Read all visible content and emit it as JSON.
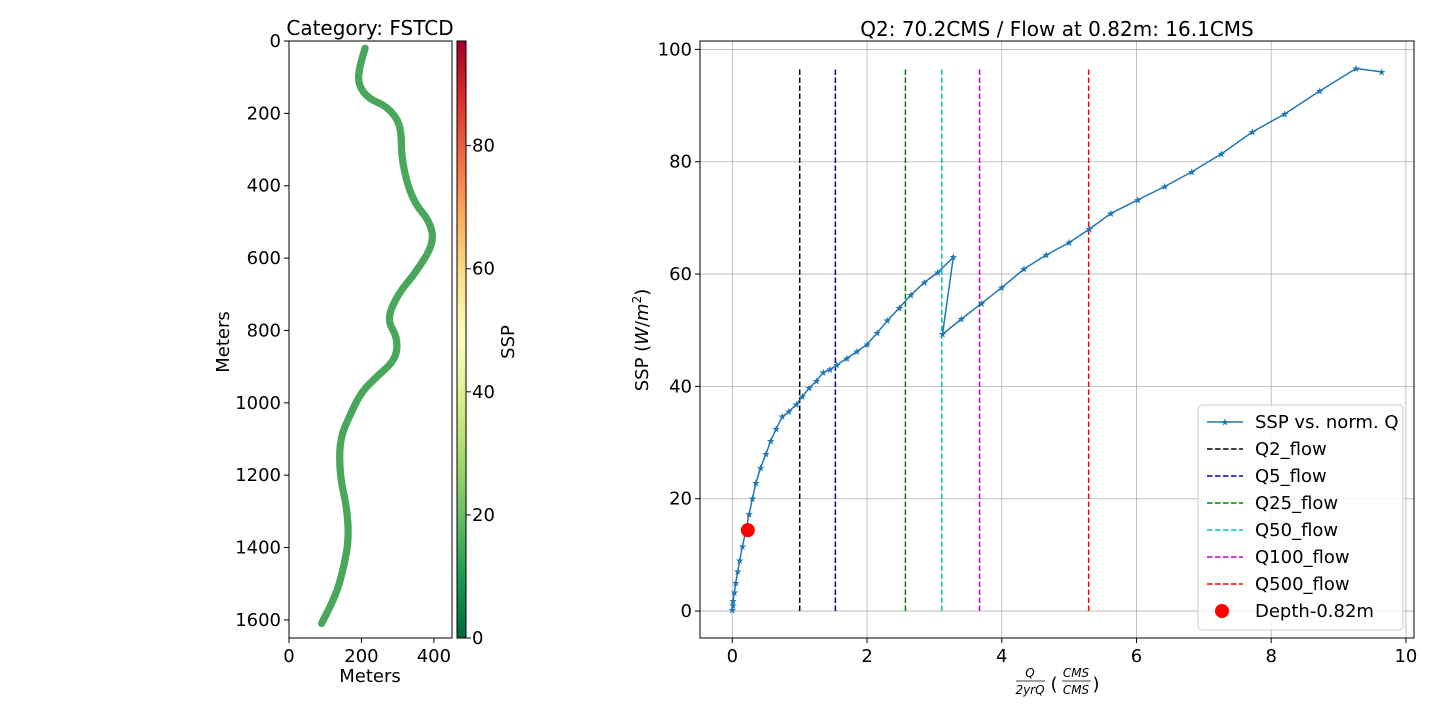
{
  "chart_data": [
    {
      "type": "heatmap",
      "title": "Category: FSTCD",
      "xlabel": "Meters",
      "ylabel": "Meters",
      "xlim": [
        0,
        450
      ],
      "ylim": [
        1650,
        0
      ],
      "xticks": [
        0,
        200,
        400
      ],
      "yticks": [
        0,
        200,
        400,
        600,
        800,
        1000,
        1200,
        1400,
        1600
      ],
      "colorbar": {
        "label": "SSP",
        "range": [
          0,
          97
        ],
        "ticks": [
          0,
          20,
          40,
          60,
          80
        ],
        "colormap": [
          "#006837",
          "#1a9850",
          "#66bd63",
          "#a6d96a",
          "#d9ef8b",
          "#ffffbf",
          "#fee08b",
          "#fdae61",
          "#f46d43",
          "#d73027",
          "#a50026"
        ]
      },
      "fill_color": "#48a75a",
      "centerline": [
        [
          210,
          20
        ],
        [
          195,
          70
        ],
        [
          190,
          120
        ],
        [
          220,
          160
        ],
        [
          270,
          180
        ],
        [
          310,
          230
        ],
        [
          310,
          330
        ],
        [
          340,
          440
        ],
        [
          390,
          500
        ],
        [
          400,
          560
        ],
        [
          350,
          640
        ],
        [
          300,
          700
        ],
        [
          270,
          770
        ],
        [
          300,
          820
        ],
        [
          295,
          880
        ],
        [
          240,
          930
        ],
        [
          200,
          970
        ],
        [
          170,
          1030
        ],
        [
          140,
          1100
        ],
        [
          140,
          1200
        ],
        [
          160,
          1290
        ],
        [
          165,
          1380
        ],
        [
          150,
          1460
        ],
        [
          130,
          1530
        ],
        [
          90,
          1610
        ]
      ],
      "width_m": 20
    },
    {
      "type": "line",
      "title": "Q2: 70.2CMS / Flow at 0.82m: 16.1CMS",
      "xlabel": "Q / 2yrQ (CMS / CMS)",
      "ylabel": "SSP (W/m²)",
      "xlim": [
        -0.48,
        10.12
      ],
      "ylim": [
        -4.8,
        101.5
      ],
      "xticks": [
        0,
        2,
        4,
        6,
        8,
        10
      ],
      "yticks": [
        0,
        20,
        40,
        60,
        80,
        100
      ],
      "grid": true,
      "legend_position": "lower-right",
      "series": [
        {
          "name": "SSP vs. norm. Q",
          "color": "#1f77b4",
          "marker": "star",
          "x": [
            0.0,
            0.01,
            0.01,
            0.03,
            0.05,
            0.08,
            0.11,
            0.15,
            0.2,
            0.25,
            0.3,
            0.35,
            0.42,
            0.5,
            0.57,
            0.65,
            0.74,
            0.84,
            0.95,
            1.04,
            1.14,
            1.25,
            1.35,
            1.45,
            1.55,
            1.7,
            1.85,
            2.0,
            2.15,
            2.3,
            2.48,
            2.65,
            2.85,
            3.05,
            3.28,
            3.12,
            3.4,
            3.7,
            4.0,
            4.33,
            4.66,
            5.0,
            5.3,
            5.62,
            6.02,
            6.42,
            6.82,
            7.26,
            7.72,
            8.2,
            8.72,
            9.26,
            9.64
          ],
          "y": [
            0.2,
            1.0,
            1.8,
            3.3,
            5.0,
            7.0,
            9.0,
            11.5,
            14.3,
            17.3,
            20.0,
            22.8,
            25.5,
            28.0,
            30.3,
            32.4,
            34.6,
            35.5,
            36.8,
            38.2,
            39.7,
            41.0,
            42.5,
            43.0,
            43.8,
            45.0,
            46.2,
            47.5,
            49.5,
            51.7,
            54.0,
            56.3,
            58.5,
            60.3,
            63.0,
            49.3,
            52.0,
            54.8,
            57.6,
            60.9,
            63.4,
            65.6,
            68.0,
            70.8,
            73.2,
            75.6,
            78.2,
            81.4,
            85.3,
            88.5,
            92.6,
            96.6,
            96.0
          ]
        }
      ],
      "vlines": [
        {
          "name": "Q2_flow",
          "x": 1.0,
          "color": "#000000",
          "ymin": 0,
          "ymax": 96.6
        },
        {
          "name": "Q5_flow",
          "x": 1.53,
          "color": "#0000bf",
          "ymin": 0,
          "ymax": 96.6
        },
        {
          "name": "Q25_flow",
          "x": 2.57,
          "color": "#008000",
          "ymin": 0,
          "ymax": 96.6
        },
        {
          "name": "Q50_flow",
          "x": 3.11,
          "color": "#00bfbf",
          "ymin": 0,
          "ymax": 96.6
        },
        {
          "name": "Q100_flow",
          "x": 3.67,
          "color": "#bf00bf",
          "ymin": 0,
          "ymax": 96.6
        },
        {
          "name": "Q500_flow",
          "x": 5.29,
          "color": "#ff0000",
          "ymin": 0,
          "ymax": 96.6
        }
      ],
      "point": {
        "name": "Depth-0.82m",
        "x": 0.23,
        "y": 14.4,
        "color": "#ff0000"
      }
    }
  ]
}
